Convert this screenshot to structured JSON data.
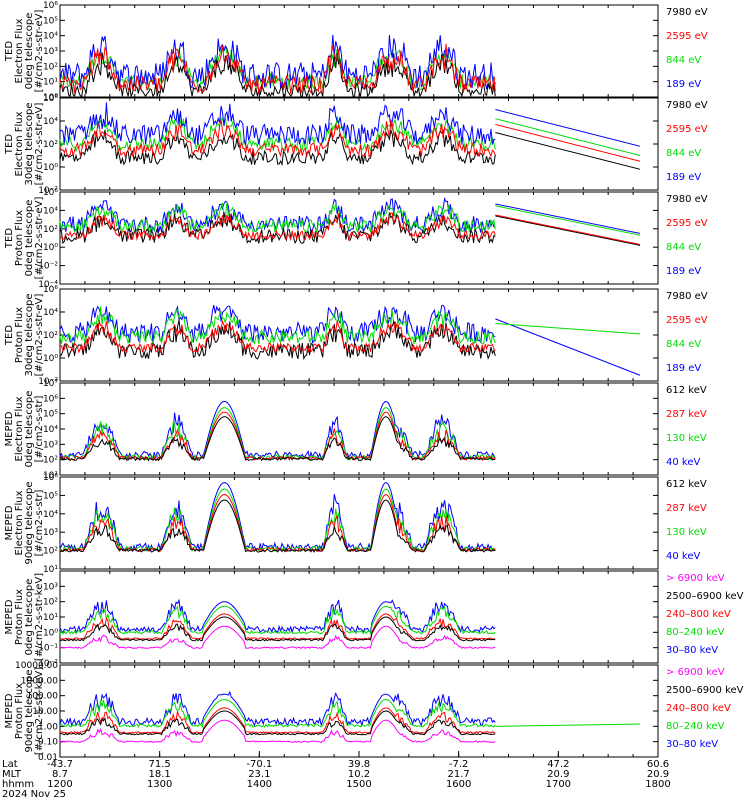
{
  "colors": {
    "blue": "#0000ff",
    "red": "#ff0000",
    "green": "#00dd00",
    "black": "#000000",
    "magenta": "#ff00ff"
  },
  "chart_data": [
    {
      "type": "line",
      "id": "p1",
      "ylabel": [
        "TED",
        "Electron Flux",
        "0deg telescope",
        "[#/cm2-s-str-eV]"
      ],
      "yscale": "log",
      "ylim_exp": [
        0,
        6
      ],
      "tick_exps": [
        0,
        1,
        2,
        3,
        4,
        5,
        6
      ],
      "tick_labels": [
        "10⁰",
        "10¹",
        "10²",
        "10³",
        "10⁴",
        "10⁵",
        "10⁶"
      ],
      "legend": [
        {
          "label": "7980 eV",
          "color": "black"
        },
        {
          "label": "2595 eV",
          "color": "red"
        },
        {
          "label": "844 eV",
          "color": "green"
        },
        {
          "label": "189 eV",
          "color": "blue"
        }
      ],
      "series": [
        {
          "color": "green",
          "base": 1.0,
          "noise": 0.5
        },
        {
          "color": "blue",
          "base": 1.4,
          "noise": 0.9
        },
        {
          "color": "black",
          "base": 0.4,
          "noise": 0.5
        },
        {
          "color": "red",
          "base": 0.8,
          "noise": 0.6
        }
      ]
    },
    {
      "type": "line",
      "id": "p2",
      "ylabel": [
        "TED",
        "Electron Flux",
        "30deg telescope",
        "[#/cm2-s-str-eV]"
      ],
      "yscale": "log",
      "ylim_exp": [
        -2,
        6
      ],
      "tick_exps": [
        -2,
        0,
        2,
        4,
        6
      ],
      "tick_labels": [
        "10⁻²",
        "10⁰",
        "10²",
        "10⁴",
        "10⁶"
      ],
      "legend": [
        {
          "label": "7980 eV",
          "color": "black"
        },
        {
          "label": "2595 eV",
          "color": "red"
        },
        {
          "label": "844 eV",
          "color": "green"
        },
        {
          "label": "189 eV",
          "color": "blue"
        }
      ],
      "series": [
        {
          "color": "green",
          "base": 2.0,
          "noise": 0.6
        },
        {
          "color": "blue",
          "base": 2.8,
          "noise": 0.9
        },
        {
          "color": "black",
          "base": 0.8,
          "noise": 0.6
        },
        {
          "color": "red",
          "base": 1.5,
          "noise": 0.6
        }
      ]
    },
    {
      "type": "line",
      "id": "p3",
      "ylabel": [
        "TED",
        "Proton Flux",
        "0deg telescope",
        "[#/cm2-s-str-eV]"
      ],
      "yscale": "log",
      "ylim_exp": [
        -4,
        6
      ],
      "tick_exps": [
        -4,
        -2,
        0,
        2,
        4,
        6
      ],
      "tick_labels": [
        "10⁻⁴",
        "10⁻²",
        "10⁰",
        "10²",
        "10⁴",
        "10⁶"
      ],
      "legend": [
        {
          "label": "7980 eV",
          "color": "black"
        },
        {
          "label": "2595 eV",
          "color": "red"
        },
        {
          "label": "844 eV",
          "color": "green"
        },
        {
          "label": "189 eV",
          "color": "blue"
        }
      ],
      "series": [
        {
          "color": "blue",
          "base": 2.5,
          "noise": 0.9
        },
        {
          "color": "green",
          "base": 2.3,
          "noise": 0.7
        },
        {
          "color": "black",
          "base": 1.2,
          "noise": 0.8
        },
        {
          "color": "red",
          "base": 1.3,
          "noise": 0.5
        }
      ]
    },
    {
      "type": "line",
      "id": "p4",
      "ylabel": [
        "TED",
        "Proton Flux",
        "30deg telescope",
        "[#/cm2-s-str-eV]"
      ],
      "yscale": "log",
      "ylim_exp": [
        -2,
        6
      ],
      "tick_exps": [
        -2,
        0,
        2,
        4,
        6
      ],
      "tick_labels": [
        "10⁻²",
        "10⁰",
        "10²",
        "10⁴",
        "10⁶"
      ],
      "legend": [
        {
          "label": "7980 eV",
          "color": "black"
        },
        {
          "label": "2595 eV",
          "color": "red"
        },
        {
          "label": "844 eV",
          "color": "green"
        },
        {
          "label": "189 eV",
          "color": "blue"
        }
      ],
      "series": [
        {
          "color": "blue",
          "base": 2.2,
          "noise": 0.9
        },
        {
          "color": "green",
          "base": 1.8,
          "noise": 0.6
        },
        {
          "color": "black",
          "base": 0.6,
          "noise": 0.7
        },
        {
          "color": "red",
          "base": 0.9,
          "noise": 0.4
        }
      ]
    },
    {
      "type": "line",
      "id": "p5",
      "ylabel": [
        "MEPED",
        "Electron Flux",
        "0deg telescope",
        "[#/cm2-s-str]"
      ],
      "yscale": "log",
      "ylim_exp": [
        1,
        7
      ],
      "tick_exps": [
        1,
        2,
        3,
        4,
        5,
        6,
        7
      ],
      "tick_labels": [
        "10¹",
        "10²",
        "10³",
        "10⁴",
        "10⁵",
        "10⁶",
        "10⁷"
      ],
      "legend": [
        {
          "label": "612 keV",
          "color": "black"
        },
        {
          "label": "287 keV",
          "color": "red"
        },
        {
          "label": "130 keV",
          "color": "green"
        },
        {
          "label": "40 keV",
          "color": "blue"
        }
      ],
      "series": [
        {
          "color": "blue",
          "base": 2.3,
          "noise": 0.5
        },
        {
          "color": "green",
          "base": 2.15,
          "noise": 0.3
        },
        {
          "color": "red",
          "base": 2.1,
          "noise": 0.25
        },
        {
          "color": "black",
          "base": 2.05,
          "noise": 0.2
        }
      ]
    },
    {
      "type": "line",
      "id": "p6",
      "ylabel": [
        "MEPED",
        "Electron Flux",
        "90deg telescope",
        "[#/cm2-s-str]"
      ],
      "yscale": "log",
      "ylim_exp": [
        1,
        6
      ],
      "tick_exps": [
        1,
        2,
        3,
        4,
        5,
        6
      ],
      "tick_labels": [
        "10¹",
        "10²",
        "10³",
        "10⁴",
        "10⁵",
        "10⁶"
      ],
      "legend": [
        {
          "label": "612 keV",
          "color": "black"
        },
        {
          "label": "287 keV",
          "color": "red"
        },
        {
          "label": "130 keV",
          "color": "green"
        },
        {
          "label": "40 keV",
          "color": "blue"
        }
      ],
      "series": [
        {
          "color": "blue",
          "base": 2.2,
          "noise": 0.4
        },
        {
          "color": "green",
          "base": 2.1,
          "noise": 0.25
        },
        {
          "color": "red",
          "base": 2.05,
          "noise": 0.2
        },
        {
          "color": "black",
          "base": 2.0,
          "noise": 0.15
        }
      ]
    },
    {
      "type": "line",
      "id": "p7",
      "ylabel": [
        "MEPED",
        "Proton Flux",
        "0deg telescope",
        "[#/cm2-s-str-keV]"
      ],
      "yscale": "log",
      "ylim_exp": [
        -2,
        4
      ],
      "tick_exps": [
        -2,
        -1,
        0,
        1,
        2,
        3
      ],
      "tick_labels": [
        "10⁻²",
        "10⁻¹",
        "10⁰",
        "10¹",
        "10²",
        "10³"
      ],
      "legend": [
        {
          "label": "> 6900 keV",
          "color": "magenta"
        },
        {
          "label": "2500–6900 keV",
          "color": "black"
        },
        {
          "label": "240–800 keV",
          "color": "red"
        },
        {
          "label": "80–240 keV",
          "color": "green"
        },
        {
          "label": "30–80 keV",
          "color": "blue"
        }
      ],
      "series": [
        {
          "color": "blue",
          "base": 0.2,
          "noise": 0.4
        },
        {
          "color": "green",
          "base": 0.0,
          "noise": 0.2
        },
        {
          "color": "red",
          "base": -0.4,
          "noise": 0.1
        },
        {
          "color": "black",
          "base": -0.5,
          "noise": 0.1
        },
        {
          "color": "magenta",
          "base": -1.0,
          "noise": 0.1
        }
      ]
    },
    {
      "type": "line",
      "id": "p8",
      "ylabel": [
        "MEPED",
        "Proton Flux",
        "90deg telescope",
        "[#/cm2-s-str-keV]"
      ],
      "yscale": "log",
      "ylim_exp": [
        -2,
        4
      ],
      "tick_exps": [
        -2,
        -1,
        0,
        1,
        2,
        3,
        4
      ],
      "tick_labels": [
        "0.01",
        "0.10",
        "1.00",
        "10.00",
        "100.00",
        "1000.00",
        "10000.00"
      ],
      "legend": [
        {
          "label": "> 6900 keV",
          "color": "magenta"
        },
        {
          "label": "2500–6900 keV",
          "color": "black"
        },
        {
          "label": "240–800 keV",
          "color": "red"
        },
        {
          "label": "80–240 keV",
          "color": "green"
        },
        {
          "label": "30–80 keV",
          "color": "blue"
        }
      ],
      "series": [
        {
          "color": "blue",
          "base": 0.3,
          "noise": 0.5
        },
        {
          "color": "green",
          "base": 0.05,
          "noise": 0.2
        },
        {
          "color": "red",
          "base": -0.4,
          "noise": 0.1
        },
        {
          "color": "black",
          "base": -0.5,
          "noise": 0.1
        },
        {
          "color": "magenta",
          "base": -1.0,
          "noise": 0.1
        }
      ]
    }
  ],
  "x_axis": {
    "row_labels": [
      "Lat",
      "MLT",
      "hhmm"
    ],
    "date": "2024 Nov 25",
    "ticks": [
      {
        "lat": "-43.7",
        "mlt": "8.7",
        "hhmm": "1200"
      },
      {
        "lat": "71.5",
        "mlt": "18.1",
        "hhmm": "1300"
      },
      {
        "lat": "-70.1",
        "mlt": "23.1",
        "hhmm": "1400"
      },
      {
        "lat": "39.8",
        "mlt": "10.2",
        "hhmm": "1500"
      },
      {
        "lat": "-7.2",
        "mlt": "21.7",
        "hhmm": "1600"
      },
      {
        "lat": "47.2",
        "mlt": "20.9",
        "hhmm": "1700"
      },
      {
        "lat": "60.6",
        "mlt": "20.9",
        "hhmm": "1800"
      }
    ]
  }
}
